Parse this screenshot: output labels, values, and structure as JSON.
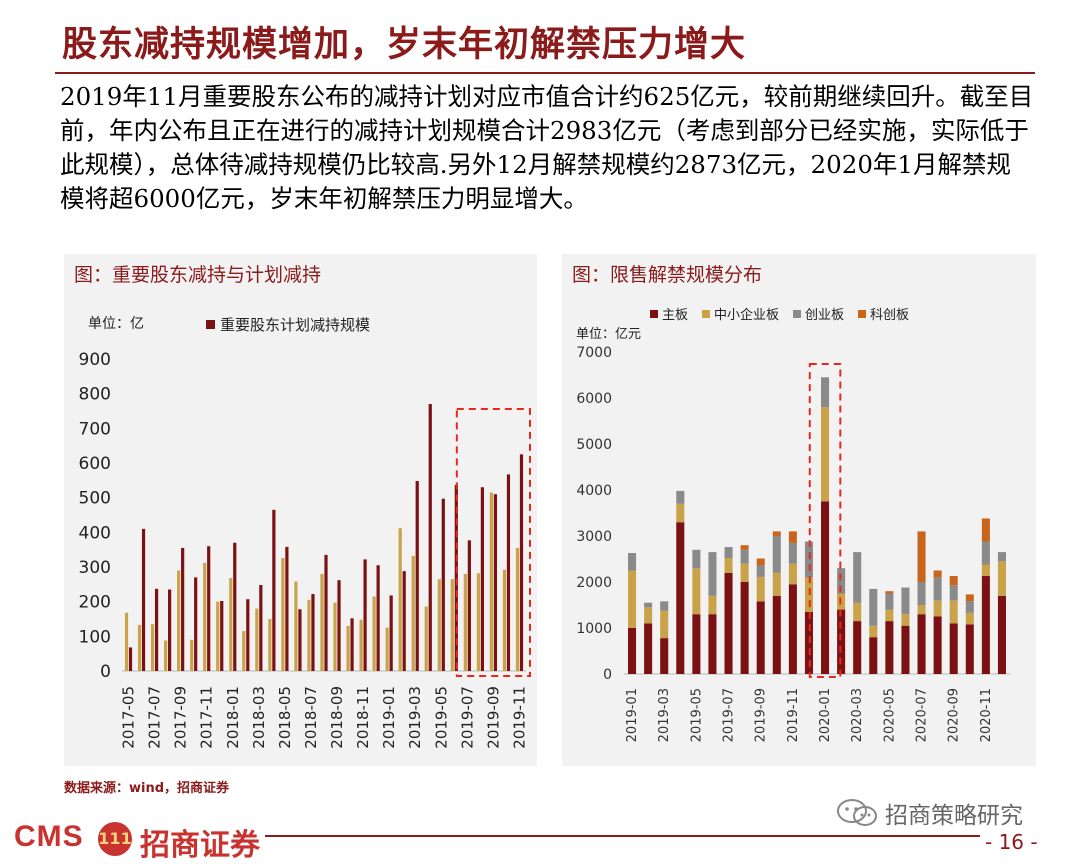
{
  "header": {
    "title": "股东减持规模增加，岁末年初解禁压力增大",
    "paragraph": "2019年11月重要股东公布的减持计划对应市值合计约625亿元，较前期继续回升。截至目前，年内公布且正在进行的减持计划规模合计2983亿元（考虑到部分已经实施，实际低于此规模），总体待减持规模仍比较高.另外12月解禁规模约2873亿元，2020年1月解禁规模将超6000亿元，岁末年初解禁压力明显增大。"
  },
  "footer": {
    "source": "数据来源：wind，招商证券",
    "wechat": "招商策略研究",
    "logo_en": "CMS",
    "logo_badge": "111",
    "logo_cn": "招商证券",
    "page": "- 16 -"
  },
  "colors": {
    "dark_red": "#7b1113",
    "gold": "#c9a24a",
    "gray": "#8a8a8a",
    "orange": "#c8651b",
    "highlight": "#e8281e"
  },
  "chart_data": [
    {
      "type": "bar",
      "title": "图：重要股东减持与计划减持",
      "unit": "单位：亿",
      "legend": "top-center",
      "categories": [
        "2017-05",
        "2017-06",
        "2017-07",
        "2017-08",
        "2017-09",
        "2017-10",
        "2017-11",
        "2017-12",
        "2018-01",
        "2018-02",
        "2018-03",
        "2018-04",
        "2018-05",
        "2018-06",
        "2018-07",
        "2018-08",
        "2018-09",
        "2018-10",
        "2018-11",
        "2018-12",
        "2019-01",
        "2019-02",
        "2019-03",
        "2019-04",
        "2019-05",
        "2019-06",
        "2019-07",
        "2019-08",
        "2019-09",
        "2019-10",
        "2019-11"
      ],
      "tick_labels": [
        "2017-05",
        "2017-07",
        "2017-09",
        "2017-11",
        "2018-01",
        "2018-03",
        "2018-05",
        "2018-07",
        "2018-09",
        "2018-11",
        "2019-01",
        "2019-03",
        "2019-05",
        "2019-07",
        "2019-09",
        "2019-11"
      ],
      "series": [
        {
          "name": "",
          "color": "#c9a24a",
          "values": [
            168,
            133,
            135,
            88,
            290,
            90,
            312,
            200,
            268,
            115,
            180,
            150,
            326,
            258,
            205,
            280,
            197,
            130,
            148,
            215,
            125,
            412,
            332,
            186,
            265,
            265,
            280,
            282,
            515,
            292,
            355
          ]
        },
        {
          "name": "重要股东计划减持规模",
          "color": "#7b1113",
          "values": [
            68,
            410,
            237,
            235,
            355,
            270,
            360,
            202,
            370,
            207,
            248,
            465,
            358,
            178,
            222,
            335,
            262,
            152,
            322,
            305,
            218,
            288,
            548,
            770,
            497,
            537,
            377,
            530,
            510,
            567,
            625
          ]
        }
      ],
      "ylim": [
        0,
        900
      ],
      "yticks": [
        0,
        100,
        200,
        300,
        400,
        500,
        600,
        700,
        800,
        900
      ],
      "highlight_range": [
        "2019-07",
        "2019-11"
      ]
    },
    {
      "type": "bar",
      "stacked": true,
      "title": "图：限售解禁规模分布",
      "unit": "单位：亿元",
      "legend": "top",
      "categories": [
        "2019-01",
        "2019-02",
        "2019-03",
        "2019-04",
        "2019-05",
        "2019-06",
        "2019-07",
        "2019-08",
        "2019-09",
        "2019-10",
        "2019-11",
        "2019-12",
        "2020-01",
        "2020-02",
        "2020-03",
        "2020-04",
        "2020-05",
        "2020-06",
        "2020-07",
        "2020-08",
        "2020-09",
        "2020-10",
        "2020-11",
        "2020-12"
      ],
      "tick_labels": [
        "2019-01",
        "2019-03",
        "2019-05",
        "2019-07",
        "2019-09",
        "2019-11",
        "2020-01",
        "2020-03",
        "2020-05",
        "2020-07",
        "2020-09",
        "2020-11"
      ],
      "series": [
        {
          "name": "主板",
          "color": "#7b1113",
          "values": [
            1000,
            1100,
            780,
            3300,
            1300,
            1300,
            2200,
            2000,
            1580,
            1700,
            1950,
            1350,
            3750,
            1400,
            1150,
            800,
            1150,
            1050,
            1300,
            1250,
            1100,
            1080,
            2130,
            1700
          ]
        },
        {
          "name": "中小企业板",
          "color": "#c9a24a",
          "values": [
            1250,
            350,
            600,
            400,
            1000,
            400,
            320,
            400,
            530,
            500,
            450,
            750,
            2050,
            350,
            400,
            250,
            250,
            250,
            200,
            350,
            500,
            250,
            250,
            750
          ]
        },
        {
          "name": "创业板",
          "color": "#8a8a8a",
          "values": [
            380,
            100,
            200,
            280,
            400,
            950,
            240,
            300,
            250,
            800,
            450,
            780,
            650,
            550,
            1100,
            800,
            350,
            580,
            500,
            500,
            330,
            250,
            500,
            200
          ]
        },
        {
          "name": "科创板",
          "color": "#c8651b",
          "values": [
            0,
            0,
            0,
            0,
            0,
            0,
            0,
            100,
            150,
            100,
            250,
            0,
            0,
            0,
            0,
            0,
            50,
            0,
            1100,
            150,
            200,
            150,
            500,
            0
          ]
        }
      ],
      "ylim": [
        0,
        7000
      ],
      "yticks": [
        0,
        1000,
        2000,
        3000,
        4000,
        5000,
        6000,
        7000
      ],
      "highlight_range": [
        "2020-01",
        "2020-01"
      ]
    }
  ]
}
